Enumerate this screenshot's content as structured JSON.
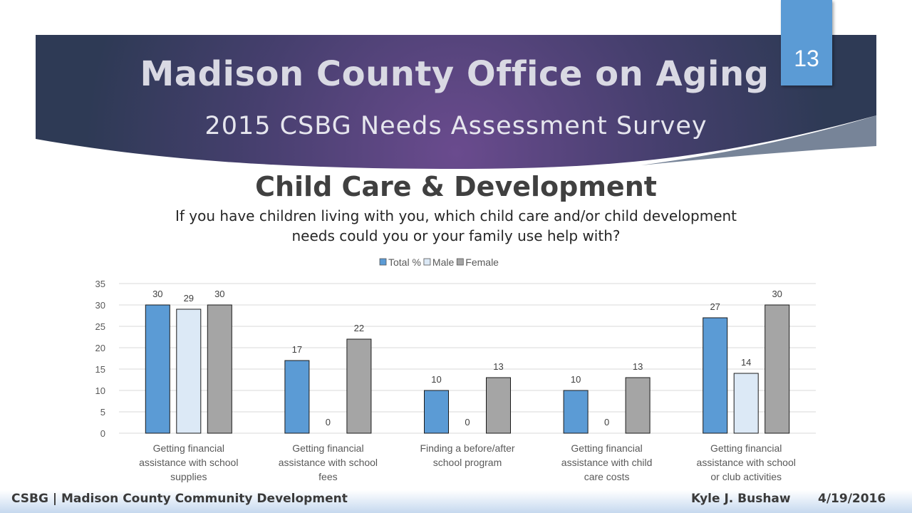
{
  "header": {
    "title": "Madison County Office on Aging",
    "subtitle": "2015 CSBG Needs Assessment Survey",
    "slide_number": "13"
  },
  "section": {
    "title": "Child Care & Development",
    "question": "If you have children living with you, which child care and/or child development needs could you or your family use help with?"
  },
  "footer": {
    "left": "CSBG | Madison County Community Development",
    "author": "Kyle J. Bushaw",
    "date": "4/19/2016"
  },
  "colors": {
    "banner_dark": "#2e3a55",
    "banner_purple": "#6a4b8e",
    "accent_blue": "#5b9bd5",
    "total": "#5b9bd5",
    "male": "#dce9f6",
    "female": "#a5a5a5"
  },
  "chart_data": {
    "type": "bar",
    "title": "",
    "xlabel": "",
    "ylabel": "",
    "ylim": [
      0,
      35
    ],
    "yticks": [
      0,
      5,
      10,
      15,
      20,
      25,
      30,
      35
    ],
    "grid": true,
    "legend_position": "top",
    "categories": [
      "Getting financial assistance with school supplies",
      "Getting financial assistance with school fees",
      "Finding a before/after school program",
      "Getting financial assistance with child care costs",
      "Getting financial assistance with school or club activities"
    ],
    "series": [
      {
        "name": "Total %",
        "color": "#5b9bd5",
        "values": [
          30,
          17,
          10,
          10,
          27
        ]
      },
      {
        "name": "Male",
        "color": "#dce9f6",
        "values": [
          29,
          0,
          0,
          0,
          14
        ]
      },
      {
        "name": "Female",
        "color": "#a5a5a5",
        "values": [
          30,
          22,
          13,
          13,
          30
        ]
      }
    ]
  }
}
